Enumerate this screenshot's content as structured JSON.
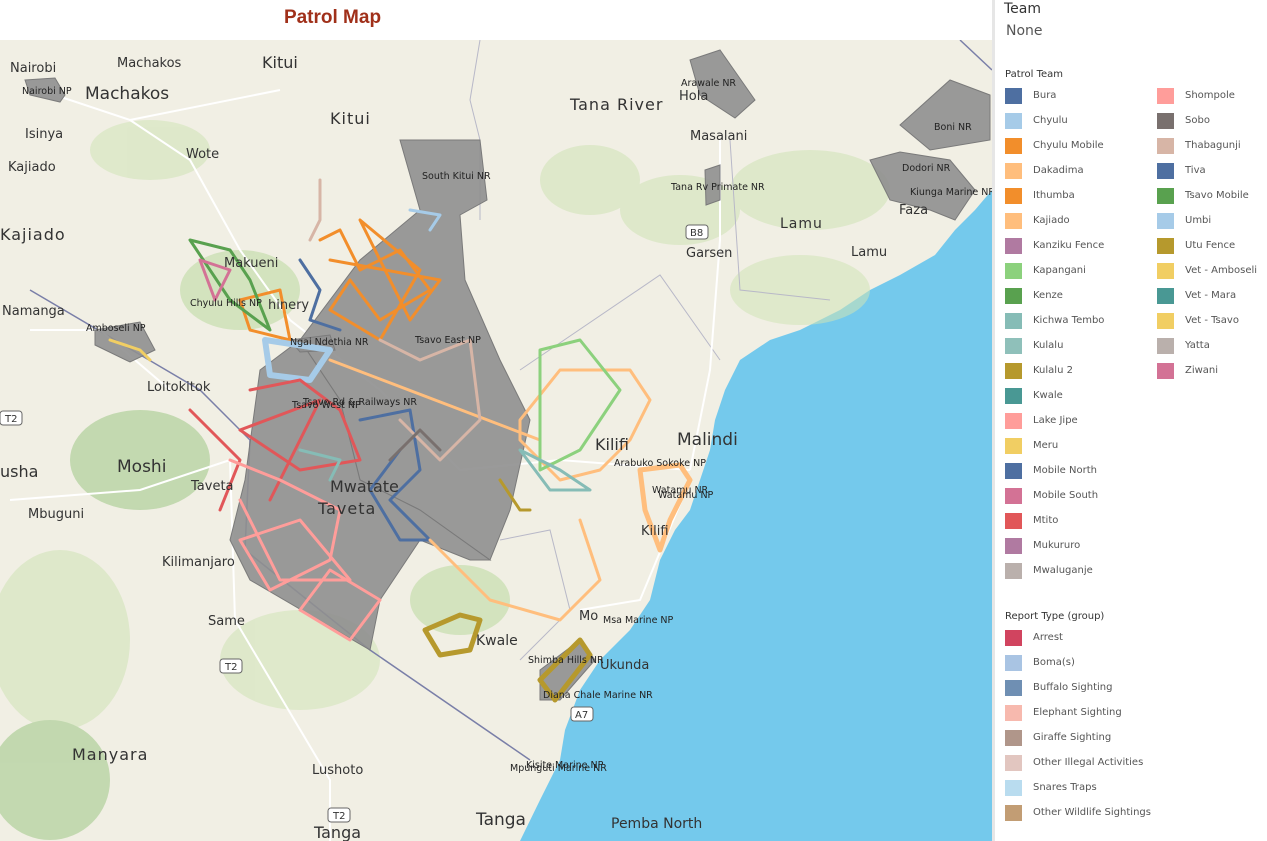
{
  "title": "Patrol Map",
  "filter": {
    "label": "Team",
    "value": "None"
  },
  "legend_patrol": {
    "title": "Patrol Team",
    "items": [
      {
        "label": "Bura",
        "color": "#4e6fa1"
      },
      {
        "label": "Chyulu",
        "color": "#a6cbe8"
      },
      {
        "label": "Chyulu Mobile",
        "color": "#f28e2b"
      },
      {
        "label": "Dakadima",
        "color": "#ffbe7d"
      },
      {
        "label": "Ithumba",
        "color": "#f28e2b"
      },
      {
        "label": "Kajiado",
        "color": "#ffbe7d"
      },
      {
        "label": "Kanziku Fence",
        "color": "#b07aa1"
      },
      {
        "label": "Kapangani",
        "color": "#8cd17d"
      },
      {
        "label": "Kenze",
        "color": "#59a14f"
      },
      {
        "label": "Kichwa Tembo",
        "color": "#86bcb6"
      },
      {
        "label": "Kulalu",
        "color": "#8fc0ba"
      },
      {
        "label": "Kulalu 2",
        "color": "#b6992d"
      },
      {
        "label": "Kwale",
        "color": "#499894"
      },
      {
        "label": "Lake Jipe",
        "color": "#ff9d9a"
      },
      {
        "label": "Meru",
        "color": "#f1ce63"
      },
      {
        "label": "Mobile North",
        "color": "#4e6fa1"
      },
      {
        "label": "Mobile South",
        "color": "#d37295"
      },
      {
        "label": "Mtito",
        "color": "#e15759"
      },
      {
        "label": "Mukururo",
        "color": "#b07aa1"
      },
      {
        "label": "Mwaluganje",
        "color": "#bab0ac"
      },
      {
        "label": "Shompole",
        "color": "#ff9d9a"
      },
      {
        "label": "Sobo",
        "color": "#79706e"
      },
      {
        "label": "Thabagunji",
        "color": "#d7b5a6"
      },
      {
        "label": "Tiva",
        "color": "#4e6fa1"
      },
      {
        "label": "Tsavo Mobile",
        "color": "#59a14f"
      },
      {
        "label": "Umbi",
        "color": "#a6cbe8"
      },
      {
        "label": "Utu Fence",
        "color": "#b6992d"
      },
      {
        "label": "Vet - Amboseli",
        "color": "#f1ce63"
      },
      {
        "label": "Vet - Mara",
        "color": "#499894"
      },
      {
        "label": "Vet - Tsavo",
        "color": "#f1ce63"
      },
      {
        "label": "Yatta",
        "color": "#bab0ac"
      },
      {
        "label": "Ziwani",
        "color": "#d37295"
      }
    ]
  },
  "legend_report": {
    "title": "Report Type (group)",
    "items": [
      {
        "label": "Arrest",
        "color": "#d1445f"
      },
      {
        "label": "Boma(s)",
        "color": "#a9c4e3"
      },
      {
        "label": "Buffalo Sighting",
        "color": "#6f8fb3"
      },
      {
        "label": "Elephant Sighting",
        "color": "#f7b9ae"
      },
      {
        "label": "Giraffe Sighting",
        "color": "#b0968a"
      },
      {
        "label": "Other Illegal Activities",
        "color": "#e2c6c0"
      },
      {
        "label": "Snares Traps",
        "color": "#b9dcef"
      },
      {
        "label": "Other Wildlife Sightings",
        "color": "#c29d74"
      }
    ]
  },
  "map": {
    "places": [
      {
        "label": "Nairobi"
      },
      {
        "label": "Machakos"
      },
      {
        "label": "Kitui"
      },
      {
        "label": "Machakos"
      },
      {
        "label": "Isinya"
      },
      {
        "label": "Kajiado"
      },
      {
        "label": "Wote"
      },
      {
        "label": "Kajiado"
      },
      {
        "label": "Kitui"
      },
      {
        "label": "Makueni"
      },
      {
        "label": "Namanga"
      },
      {
        "label": "Loitokitok"
      },
      {
        "label": "Moshi"
      },
      {
        "label": "usha"
      },
      {
        "label": "Mbuguni"
      },
      {
        "label": "Kilimanjaro"
      },
      {
        "label": "Same"
      },
      {
        "label": "Manyara"
      },
      {
        "label": "Lushoto"
      },
      {
        "label": "Tanga"
      },
      {
        "label": "Tanga"
      },
      {
        "label": "Pemba North"
      },
      {
        "label": "Tana River"
      },
      {
        "label": "Masalani"
      },
      {
        "label": "Garsen"
      },
      {
        "label": "Lamu"
      },
      {
        "label": "Lamu"
      },
      {
        "label": "Faza"
      },
      {
        "label": "Malindi"
      },
      {
        "label": "Kilifi"
      },
      {
        "label": "Kilifi"
      },
      {
        "label": "Kwale"
      },
      {
        "label": "Mo"
      },
      {
        "label": "Taveta"
      },
      {
        "label": "Taveta"
      },
      {
        "label": "Mwatate"
      },
      {
        "label": "Hola"
      },
      {
        "label": "Ukunda"
      },
      {
        "label": "hinery"
      }
    ],
    "road_shields": [
      {
        "label": "T2"
      },
      {
        "label": "T2"
      },
      {
        "label": "T2"
      },
      {
        "label": "B8"
      },
      {
        "label": "A7"
      }
    ],
    "protected_areas": [
      {
        "label": "Nairobi NP"
      },
      {
        "label": "Amboseli NP"
      },
      {
        "label": "Chyulu Hills NP"
      },
      {
        "label": "Ngai Ndethia NR"
      },
      {
        "label": "Tsavo East NP"
      },
      {
        "label": "South Kitui NR"
      },
      {
        "label": "Tsavo Rd & Railways NR"
      },
      {
        "label": "Tsavo West NP"
      },
      {
        "label": "Arawale NR"
      },
      {
        "label": "Boni NR"
      },
      {
        "label": "Dodori NR"
      },
      {
        "label": "Kiunga Marine NR"
      },
      {
        "label": "Tana Rv Primate NR"
      },
      {
        "label": "Arabuko Sokoke NP"
      },
      {
        "label": "Watamu NR"
      },
      {
        "label": "Watamu NP"
      },
      {
        "label": "Msa Marine NP"
      },
      {
        "label": "Shimba Hills NR"
      },
      {
        "label": "Diana Chale Marine NR"
      },
      {
        "label": "Kisite Marine NP"
      },
      {
        "label": "Mpunguti Marine NR"
      }
    ]
  }
}
